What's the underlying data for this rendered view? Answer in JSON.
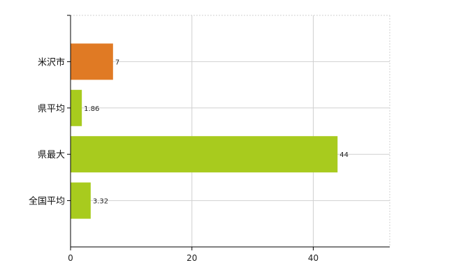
{
  "chart_data": {
    "type": "bar",
    "orientation": "horizontal",
    "categories": [
      "米沢市",
      "県平均",
      "県最大",
      "全国平均"
    ],
    "values": [
      7,
      1.86,
      44,
      3.32
    ],
    "value_labels": [
      "7",
      "1.86",
      "44",
      "3.32"
    ],
    "bar_colors": [
      "#E07A24",
      "#A8CB1E",
      "#A8CB1E",
      "#A8CB1E"
    ],
    "xlim": [
      0,
      52.6
    ],
    "xticks": [
      0,
      20,
      40
    ],
    "xtick_labels": [
      "0",
      "20",
      "40"
    ],
    "grid": true,
    "title": "",
    "xlabel": "",
    "ylabel": ""
  }
}
